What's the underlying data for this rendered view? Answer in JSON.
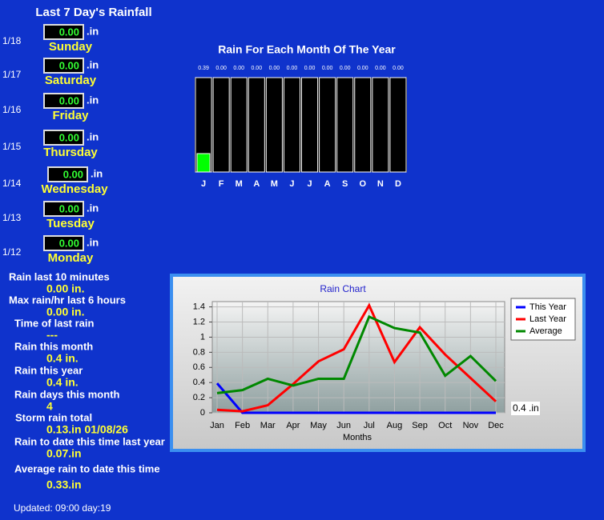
{
  "title": "Last 7 Day's Rainfall",
  "days": [
    {
      "date": "1/18",
      "value": "0.00",
      "unit": ".in",
      "name": "Sunday"
    },
    {
      "date": "1/17",
      "value": "0.00",
      "unit": ".in",
      "name": "Saturday"
    },
    {
      "date": "1/16",
      "value": "0.00",
      "unit": ".in",
      "name": "Friday"
    },
    {
      "date": "1/15",
      "value": "0.00",
      "unit": ".in",
      "name": "Thursday"
    },
    {
      "date": "1/14",
      "value": "0.00",
      "unit": ".in",
      "name": "Wednesday"
    },
    {
      "date": "1/13",
      "value": "0.00",
      "unit": ".in",
      "name": "Tuesday"
    },
    {
      "date": "1/12",
      "value": "0.00",
      "unit": ".in",
      "name": "Monday"
    }
  ],
  "stats": [
    {
      "label": "Rain last 10 minutes",
      "value": "0.00 in."
    },
    {
      "label": "Max rain/hr last 6 hours",
      "value": "0.00 in."
    },
    {
      "label": "Time of last rain",
      "value": "---"
    },
    {
      "label": "Rain this month",
      "value": "0.4 in."
    },
    {
      "label": "Rain this year",
      "value": "0.4 in."
    },
    {
      "label": "Rain days this month",
      "value": "4"
    },
    {
      "label": "Storm rain total",
      "value": "0.13.in 01/08/26"
    },
    {
      "label": "Rain to date this time last year",
      "value": "0.07.in"
    },
    {
      "label": "Average rain to date this time",
      "value": "0.33.in"
    }
  ],
  "updated": "Updated: 09:00 day:19",
  "chart_data": [
    {
      "type": "bar",
      "title": "Rain For Each Month Of The Year",
      "categories": [
        "J",
        "F",
        "M",
        "A",
        "M",
        "J",
        "J",
        "A",
        "S",
        "O",
        "N",
        "D"
      ],
      "values": [
        0.39,
        0,
        0,
        0,
        0,
        0,
        0,
        0,
        0,
        0,
        0,
        0
      ],
      "value_labels": [
        "0.39",
        "0.00",
        "0.00",
        "0.00",
        "0.00",
        "0.00",
        "0.00",
        "0.00",
        "0.00",
        "0.00",
        "0.00",
        "0.00"
      ],
      "color": "#00ff00",
      "ylim": [
        0,
        2
      ]
    },
    {
      "type": "line",
      "title": "Rain Chart",
      "x_label": "Months",
      "categories": [
        "Jan",
        "Feb",
        "Mar",
        "Apr",
        "May",
        "Jun",
        "Jul",
        "Aug",
        "Sep",
        "Oct",
        "Nov",
        "Dec"
      ],
      "series": [
        {
          "name": "This Year",
          "color": "#0000ff",
          "values": [
            0.39,
            0,
            0,
            0,
            0,
            0,
            0,
            0,
            0,
            0,
            0,
            0
          ]
        },
        {
          "name": "Last Year",
          "color": "#ff0000",
          "values": [
            0.04,
            0.02,
            0.1,
            0.38,
            0.68,
            0.84,
            1.42,
            0.67,
            1.13,
            0.77,
            0.46,
            0.15
          ]
        },
        {
          "name": "Average",
          "color": "#008800",
          "values": [
            0.26,
            0.3,
            0.45,
            0.36,
            0.45,
            0.45,
            1.27,
            1.12,
            1.06,
            0.49,
            0.75,
            0.42
          ]
        }
      ],
      "ylim": [
        0,
        1.47
      ],
      "yticks": [
        0,
        0.2,
        0.4,
        0.6,
        0.8,
        1,
        1.2,
        1.4
      ],
      "grid": true,
      "legend": "top-right",
      "annotation": "0.4 .in"
    }
  ]
}
